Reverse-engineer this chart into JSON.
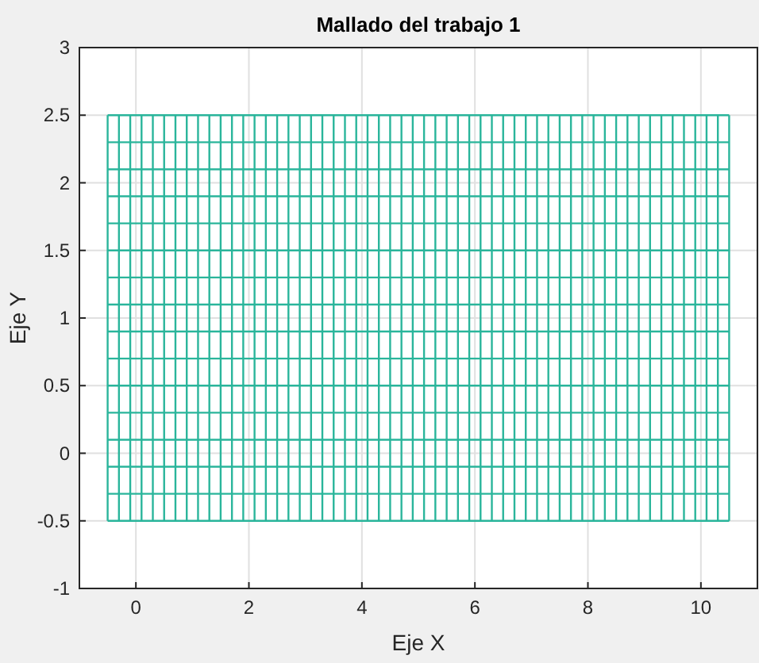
{
  "chart_data": {
    "type": "line",
    "title": "Mallado del trabajo 1",
    "xlabel": "Eje X",
    "ylabel": "Eje Y",
    "xlim": [
      -1,
      11
    ],
    "xticks": [
      0,
      2,
      4,
      6,
      8,
      10
    ],
    "ylim": [
      -1,
      3
    ],
    "yticks": [
      -1,
      -0.5,
      0,
      0.5,
      1,
      1.5,
      2,
      2.5,
      3
    ],
    "grid": true,
    "marker": "none",
    "line_style": "solid",
    "color": "#2ab59b",
    "series": [
      {
        "x": [
          -0.5,
          10.5
        ],
        "values": [
          -0.5,
          -0.5
        ]
      },
      {
        "x": [
          -0.5,
          10.5
        ],
        "values": [
          -0.3,
          -0.3
        ]
      },
      {
        "x": [
          -0.5,
          10.5
        ],
        "values": [
          -0.1,
          -0.1
        ]
      },
      {
        "x": [
          -0.5,
          10.5
        ],
        "values": [
          0.1,
          0.1
        ]
      },
      {
        "x": [
          -0.5,
          10.5
        ],
        "values": [
          0.3,
          0.3
        ]
      },
      {
        "x": [
          -0.5,
          10.5
        ],
        "values": [
          0.5,
          0.5
        ]
      },
      {
        "x": [
          -0.5,
          10.5
        ],
        "values": [
          0.7,
          0.7
        ]
      },
      {
        "x": [
          -0.5,
          10.5
        ],
        "values": [
          0.9,
          0.9
        ]
      },
      {
        "x": [
          -0.5,
          10.5
        ],
        "values": [
          1.1,
          1.1
        ]
      },
      {
        "x": [
          -0.5,
          10.5
        ],
        "values": [
          1.3,
          1.3
        ]
      },
      {
        "x": [
          -0.5,
          10.5
        ],
        "values": [
          1.5,
          1.5
        ]
      },
      {
        "x": [
          -0.5,
          10.5
        ],
        "values": [
          1.7,
          1.7
        ]
      },
      {
        "x": [
          -0.5,
          10.5
        ],
        "values": [
          1.9,
          1.9
        ]
      },
      {
        "x": [
          -0.5,
          10.5
        ],
        "values": [
          2.1,
          2.1
        ]
      },
      {
        "x": [
          -0.5,
          10.5
        ],
        "values": [
          2.3,
          2.3
        ]
      },
      {
        "x": [
          -0.5,
          10.5
        ],
        "values": [
          2.5,
          2.5
        ]
      },
      {
        "x": [
          -0.5,
          -0.5
        ],
        "values": [
          -0.5,
          2.5
        ]
      },
      {
        "x": [
          -0.3,
          -0.3
        ],
        "values": [
          -0.5,
          2.5
        ]
      },
      {
        "x": [
          -0.1,
          -0.1
        ],
        "values": [
          -0.5,
          2.5
        ]
      },
      {
        "x": [
          0.1,
          0.1
        ],
        "values": [
          -0.5,
          2.5
        ]
      },
      {
        "x": [
          0.3,
          0.3
        ],
        "values": [
          -0.5,
          2.5
        ]
      },
      {
        "x": [
          0.5,
          0.5
        ],
        "values": [
          -0.5,
          2.5
        ]
      },
      {
        "x": [
          0.7,
          0.7
        ],
        "values": [
          -0.5,
          2.5
        ]
      },
      {
        "x": [
          0.9,
          0.9
        ],
        "values": [
          -0.5,
          2.5
        ]
      },
      {
        "x": [
          1.1,
          1.1
        ],
        "values": [
          -0.5,
          2.5
        ]
      },
      {
        "x": [
          1.3,
          1.3
        ],
        "values": [
          -0.5,
          2.5
        ]
      },
      {
        "x": [
          1.5,
          1.5
        ],
        "values": [
          -0.5,
          2.5
        ]
      },
      {
        "x": [
          1.7,
          1.7
        ],
        "values": [
          -0.5,
          2.5
        ]
      },
      {
        "x": [
          1.9,
          1.9
        ],
        "values": [
          -0.5,
          2.5
        ]
      },
      {
        "x": [
          2.1,
          2.1
        ],
        "values": [
          -0.5,
          2.5
        ]
      },
      {
        "x": [
          2.3,
          2.3
        ],
        "values": [
          -0.5,
          2.5
        ]
      },
      {
        "x": [
          2.5,
          2.5
        ],
        "values": [
          -0.5,
          2.5
        ]
      },
      {
        "x": [
          2.7,
          2.7
        ],
        "values": [
          -0.5,
          2.5
        ]
      },
      {
        "x": [
          2.9,
          2.9
        ],
        "values": [
          -0.5,
          2.5
        ]
      },
      {
        "x": [
          3.1,
          3.1
        ],
        "values": [
          -0.5,
          2.5
        ]
      },
      {
        "x": [
          3.3,
          3.3
        ],
        "values": [
          -0.5,
          2.5
        ]
      },
      {
        "x": [
          3.5,
          3.5
        ],
        "values": [
          -0.5,
          2.5
        ]
      },
      {
        "x": [
          3.7,
          3.7
        ],
        "values": [
          -0.5,
          2.5
        ]
      },
      {
        "x": [
          3.9,
          3.9
        ],
        "values": [
          -0.5,
          2.5
        ]
      },
      {
        "x": [
          4.1,
          4.1
        ],
        "values": [
          -0.5,
          2.5
        ]
      },
      {
        "x": [
          4.3,
          4.3
        ],
        "values": [
          -0.5,
          2.5
        ]
      },
      {
        "x": [
          4.5,
          4.5
        ],
        "values": [
          -0.5,
          2.5
        ]
      },
      {
        "x": [
          4.7,
          4.7
        ],
        "values": [
          -0.5,
          2.5
        ]
      },
      {
        "x": [
          4.9,
          4.9
        ],
        "values": [
          -0.5,
          2.5
        ]
      },
      {
        "x": [
          5.1,
          5.1
        ],
        "values": [
          -0.5,
          2.5
        ]
      },
      {
        "x": [
          5.3,
          5.3
        ],
        "values": [
          -0.5,
          2.5
        ]
      },
      {
        "x": [
          5.5,
          5.5
        ],
        "values": [
          -0.5,
          2.5
        ]
      },
      {
        "x": [
          5.7,
          5.7
        ],
        "values": [
          -0.5,
          2.5
        ]
      },
      {
        "x": [
          5.9,
          5.9
        ],
        "values": [
          -0.5,
          2.5
        ]
      },
      {
        "x": [
          6.1,
          6.1
        ],
        "values": [
          -0.5,
          2.5
        ]
      },
      {
        "x": [
          6.3,
          6.3
        ],
        "values": [
          -0.5,
          2.5
        ]
      },
      {
        "x": [
          6.5,
          6.5
        ],
        "values": [
          -0.5,
          2.5
        ]
      },
      {
        "x": [
          6.7,
          6.7
        ],
        "values": [
          -0.5,
          2.5
        ]
      },
      {
        "x": [
          6.9,
          6.9
        ],
        "values": [
          -0.5,
          2.5
        ]
      },
      {
        "x": [
          7.1,
          7.1
        ],
        "values": [
          -0.5,
          2.5
        ]
      },
      {
        "x": [
          7.3,
          7.3
        ],
        "values": [
          -0.5,
          2.5
        ]
      },
      {
        "x": [
          7.5,
          7.5
        ],
        "values": [
          -0.5,
          2.5
        ]
      },
      {
        "x": [
          7.7,
          7.7
        ],
        "values": [
          -0.5,
          2.5
        ]
      },
      {
        "x": [
          7.9,
          7.9
        ],
        "values": [
          -0.5,
          2.5
        ]
      },
      {
        "x": [
          8.1,
          8.1
        ],
        "values": [
          -0.5,
          2.5
        ]
      },
      {
        "x": [
          8.3,
          8.3
        ],
        "values": [
          -0.5,
          2.5
        ]
      },
      {
        "x": [
          8.5,
          8.5
        ],
        "values": [
          -0.5,
          2.5
        ]
      },
      {
        "x": [
          8.7,
          8.7
        ],
        "values": [
          -0.5,
          2.5
        ]
      },
      {
        "x": [
          8.9,
          8.9
        ],
        "values": [
          -0.5,
          2.5
        ]
      },
      {
        "x": [
          9.1,
          9.1
        ],
        "values": [
          -0.5,
          2.5
        ]
      },
      {
        "x": [
          9.3,
          9.3
        ],
        "values": [
          -0.5,
          2.5
        ]
      },
      {
        "x": [
          9.5,
          9.5
        ],
        "values": [
          -0.5,
          2.5
        ]
      },
      {
        "x": [
          9.7,
          9.7
        ],
        "values": [
          -0.5,
          2.5
        ]
      },
      {
        "x": [
          9.9,
          9.9
        ],
        "values": [
          -0.5,
          2.5
        ]
      },
      {
        "x": [
          10.1,
          10.1
        ],
        "values": [
          -0.5,
          2.5
        ]
      },
      {
        "x": [
          10.3,
          10.3
        ],
        "values": [
          -0.5,
          2.5
        ]
      },
      {
        "x": [
          10.5,
          10.5
        ],
        "values": [
          -0.5,
          2.5
        ]
      }
    ]
  }
}
